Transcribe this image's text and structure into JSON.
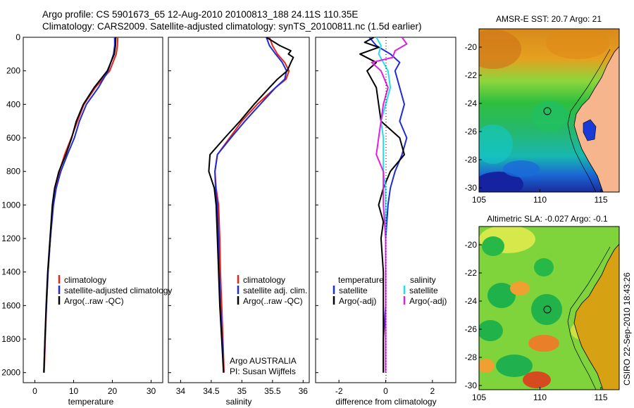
{
  "header": {
    "line1": "Argo profile: CS 5901673_65 12-Aug-2010 20100813_188 24.11S 110.35E",
    "line2": "Climatology: CARS2009. Satellite-adjusted climatology: synTS_20100811.nc (1.5d earlier)"
  },
  "colors": {
    "climatology": "#e8231c",
    "satellite": "#1f2bd8",
    "argo": "#000000",
    "satellite_sal": "#20e0e8",
    "argo_sal": "#e020e0"
  },
  "chart_data": [
    {
      "type": "line",
      "id": "temperature",
      "xlabel": "temperature",
      "xlim": [
        -3,
        33
      ],
      "ylim": [
        0,
        2060
      ],
      "xticks": [
        "0",
        "10",
        "20",
        "30"
      ],
      "xtick_values": [
        0,
        10,
        20,
        30
      ],
      "yticks": [
        "0",
        "200",
        "400",
        "600",
        "800",
        "1000",
        "1200",
        "1400",
        "1600",
        "1800",
        "2000"
      ],
      "ytick_values": [
        0,
        200,
        400,
        600,
        800,
        1000,
        1200,
        1400,
        1600,
        1800,
        2000
      ],
      "legend": [
        "climatology",
        "satellite-adjusted climatology",
        "Argo(..raw -QC)"
      ],
      "series": [
        {
          "name": "climatology",
          "color_key": "climatology",
          "depth": [
            0,
            50,
            100,
            200,
            300,
            400,
            500,
            600,
            700,
            800,
            900,
            1000,
            1200,
            1400,
            1600,
            1800,
            2000
          ],
          "values": [
            21.4,
            21.3,
            21.0,
            19.3,
            15.6,
            12.7,
            11.0,
            9.4,
            7.7,
            6.3,
            5.3,
            4.7,
            4.0,
            3.4,
            3.0,
            2.7,
            2.4
          ]
        },
        {
          "name": "satellite",
          "color_key": "satellite",
          "depth": [
            0,
            50,
            100,
            200,
            300,
            400,
            500,
            600,
            700,
            800,
            900,
            1000,
            1200,
            1400,
            1600,
            1800,
            2000
          ],
          "values": [
            20.6,
            20.6,
            20.3,
            18.9,
            16.4,
            13.3,
            11.5,
            10.2,
            8.4,
            6.7,
            5.5,
            4.8,
            4.0,
            3.4,
            3.0,
            2.6,
            2.3
          ]
        },
        {
          "name": "argo",
          "color_key": "argo",
          "depth": [
            0,
            50,
            100,
            200,
            300,
            400,
            500,
            600,
            700,
            800,
            900,
            1000,
            1200,
            1400,
            1600,
            1800,
            2000
          ],
          "values": [
            20.9,
            20.8,
            20.5,
            18.7,
            15.3,
            12.5,
            10.7,
            9.5,
            8.0,
            6.2,
            5.1,
            4.5,
            3.9,
            3.3,
            2.9,
            2.6,
            2.3
          ]
        }
      ]
    },
    {
      "type": "line",
      "id": "salinity",
      "xlabel": "salinity",
      "xlim": [
        33.8,
        36.1
      ],
      "ylim": [
        0,
        2060
      ],
      "xticks": [
        "34",
        "34.5",
        "35",
        "35.5",
        "36"
      ],
      "xtick_values": [
        34,
        34.5,
        35,
        35.5,
        36
      ],
      "legend": [
        "climatology",
        "satellite adj. clim.",
        "Argo(..raw -QC)"
      ],
      "annotation": [
        "Argo AUSTRALIA",
        "PI: Susan Wijffels"
      ],
      "series": [
        {
          "name": "climatology",
          "color_key": "climatology",
          "depth": [
            0,
            50,
            100,
            150,
            200,
            250,
            300,
            400,
            500,
            600,
            700,
            800,
            900,
            1000,
            1200,
            1400,
            1600,
            1800,
            2000
          ],
          "values": [
            35.45,
            35.5,
            35.58,
            35.7,
            35.77,
            35.72,
            35.55,
            35.25,
            35.0,
            34.8,
            34.6,
            34.56,
            34.58,
            34.62,
            34.64,
            34.65,
            34.67,
            34.69,
            34.71
          ]
        },
        {
          "name": "satellite",
          "color_key": "satellite",
          "depth": [
            0,
            50,
            100,
            150,
            200,
            250,
            300,
            400,
            500,
            600,
            700,
            800,
            900,
            1000,
            1200,
            1400,
            1600,
            1800,
            2000
          ],
          "values": [
            35.4,
            35.45,
            35.55,
            35.66,
            35.73,
            35.7,
            35.55,
            35.3,
            35.05,
            34.82,
            34.6,
            34.56,
            34.57,
            34.6,
            34.62,
            34.63,
            34.65,
            34.68,
            34.7
          ]
        },
        {
          "name": "argo",
          "color_key": "argo",
          "depth": [
            0,
            50,
            80,
            100,
            120,
            150,
            200,
            250,
            300,
            400,
            500,
            600,
            700,
            800,
            900,
            1000,
            1200,
            1400,
            1600,
            1800,
            2000
          ],
          "values": [
            35.4,
            35.62,
            35.8,
            35.76,
            35.84,
            35.8,
            35.74,
            35.58,
            35.45,
            35.2,
            34.97,
            34.72,
            34.48,
            34.46,
            34.55,
            34.58,
            34.6,
            34.62,
            34.64,
            34.67,
            34.7
          ]
        }
      ]
    },
    {
      "type": "line",
      "id": "difference",
      "xlabel": "difference from climatology",
      "xlim": [
        -3,
        3
      ],
      "ylim": [
        0,
        2060
      ],
      "xticks": [
        "-2",
        "0",
        "2"
      ],
      "xtick_values": [
        -2,
        0,
        2
      ],
      "legend_left": {
        "title": "temperature",
        "items": [
          "satellite",
          "Argo(-adj)"
        ]
      },
      "legend_right": {
        "title": "salinity",
        "items": [
          "satellite",
          "Argo(-adj)"
        ]
      },
      "series": [
        {
          "name": "temperature satellite",
          "color_key": "satellite",
          "depth": [
            0,
            50,
            100,
            150,
            200,
            300,
            400,
            500,
            600,
            700,
            800,
            900,
            1000,
            1200,
            1400,
            1600,
            1800,
            2000
          ],
          "values": [
            -0.7,
            -0.4,
            0.2,
            0.6,
            0.4,
            0.6,
            0.8,
            0.6,
            0.9,
            0.7,
            0.4,
            0.2,
            0.1,
            0.0,
            0.0,
            0.0,
            -0.1,
            -0.1
          ]
        },
        {
          "name": "temperature argo",
          "color_key": "argo",
          "depth": [
            0,
            30,
            60,
            100,
            150,
            200,
            300,
            400,
            500,
            600,
            700,
            800,
            900,
            1000,
            1100,
            1200,
            1400,
            1600,
            1800,
            2000
          ],
          "values": [
            -0.5,
            -0.9,
            -0.3,
            -1.1,
            -0.4,
            -0.8,
            -0.4,
            -0.3,
            -0.2,
            0.6,
            0.8,
            0.2,
            -0.1,
            -0.3,
            -0.1,
            -0.2,
            -0.1,
            -0.1,
            -0.1,
            -0.1
          ]
        },
        {
          "name": "salinity satellite",
          "color_key": "satellite_sal",
          "depth": [
            0,
            50,
            100,
            150,
            200,
            300,
            400,
            500,
            600,
            700,
            800,
            900,
            1000,
            1200,
            1400,
            1600,
            1800,
            2000
          ],
          "values": [
            -0.4,
            -0.2,
            -0.3,
            -0.1,
            0.1,
            0.2,
            0.0,
            -0.2,
            -0.1,
            -0.1,
            -0.1,
            0.0,
            0.0,
            0.0,
            0.0,
            0.0,
            0.0,
            0.0
          ]
        },
        {
          "name": "salinity argo",
          "color_key": "argo_sal",
          "depth": [
            0,
            40,
            80,
            120,
            150,
            200,
            300,
            400,
            500,
            600,
            700,
            800,
            900,
            1000,
            1200,
            1400,
            1600,
            1800,
            2000
          ],
          "values": [
            0.7,
            0.9,
            0.4,
            0.3,
            -0.6,
            -0.2,
            0.1,
            -0.1,
            -0.2,
            -0.3,
            -0.4,
            -0.1,
            -0.1,
            -0.1,
            0.0,
            0.0,
            0.0,
            0.0,
            0.0
          ]
        }
      ]
    },
    {
      "type": "heatmap",
      "id": "sst_map",
      "title": "AMSR-E SST: 20.7  Argo: 21",
      "xticks": [
        "105",
        "110",
        "115"
      ],
      "xtick_values": [
        105,
        110,
        115
      ],
      "yticks": [
        "-20",
        "-22",
        "-24",
        "-26",
        "-28",
        "-30"
      ],
      "ytick_values": [
        -20,
        -22,
        -24,
        -26,
        -28,
        -30
      ],
      "xlim": [
        105,
        116.5
      ],
      "ylim": [
        -30.3,
        -18.7
      ],
      "float_position": [
        110.35,
        -24.11
      ]
    },
    {
      "type": "heatmap",
      "id": "sla_map",
      "title": "Altimetric SLA: -0.027  Argo: -0.1",
      "xticks": [
        "105",
        "110",
        "115"
      ],
      "xtick_values": [
        105,
        110,
        115
      ],
      "yticks": [
        "-20",
        "-22",
        "-24",
        "-26",
        "-28",
        "-30"
      ],
      "ytick_values": [
        -20,
        -22,
        -24,
        -26,
        -28,
        -30
      ],
      "xlim": [
        105,
        116.5
      ],
      "ylim": [
        -30.3,
        -18.7
      ],
      "float_position": [
        110.35,
        -24.11
      ]
    }
  ],
  "footer": "CSIRO 22-Sep-2010 18:43:26"
}
